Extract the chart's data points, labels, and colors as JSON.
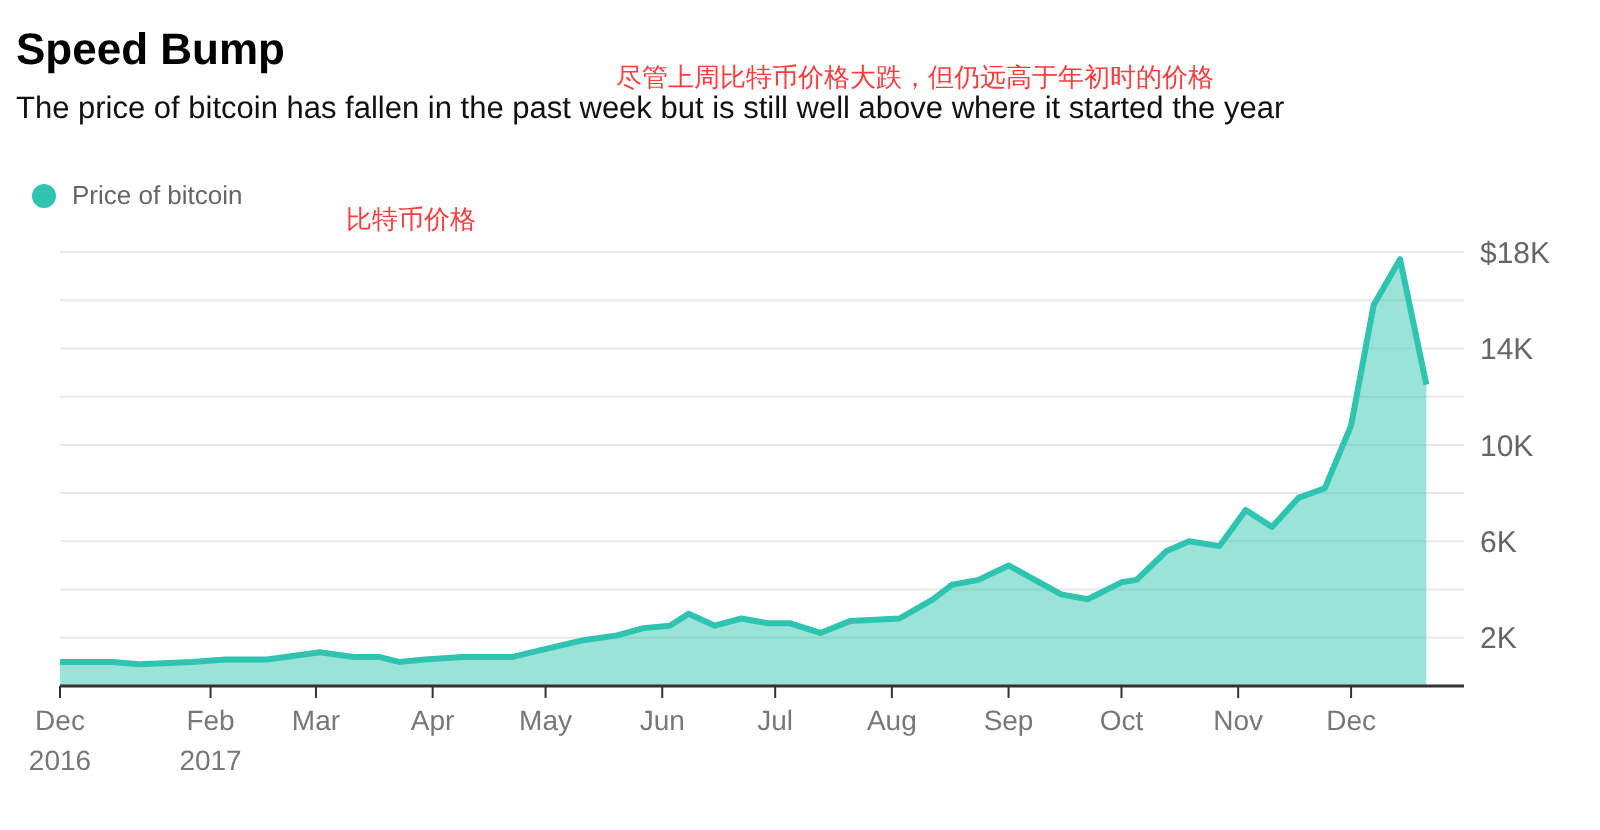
{
  "chart_data": {
    "type": "area",
    "title": "Speed Bump",
    "subtitle": "The price of bitcoin has fallen in the past week but is still well above where it started the year",
    "annotations": [
      "尽管上周比特币价格大跌，但仍远高于年初时的价格",
      "比特币价格"
    ],
    "x": [
      "2016-12-23",
      "2017-01-06",
      "2017-01-13",
      "2017-01-27",
      "2017-02-05",
      "2017-02-16",
      "2017-03-02",
      "2017-03-11",
      "2017-03-18",
      "2017-03-23",
      "2017-03-30",
      "2017-04-09",
      "2017-04-22",
      "2017-04-30",
      "2017-05-11",
      "2017-05-20",
      "2017-05-27",
      "2017-06-03",
      "2017-06-08",
      "2017-06-15",
      "2017-06-22",
      "2017-06-29",
      "2017-07-05",
      "2017-07-13",
      "2017-07-21",
      "2017-08-03",
      "2017-08-12",
      "2017-08-17",
      "2017-08-24",
      "2017-09-01",
      "2017-09-15",
      "2017-09-22",
      "2017-10-01",
      "2017-10-05",
      "2017-10-13",
      "2017-10-19",
      "2017-10-27",
      "2017-11-03",
      "2017-11-10",
      "2017-11-17",
      "2017-11-24",
      "2017-12-01",
      "2017-12-07",
      "2017-12-14",
      "2017-12-21"
    ],
    "series": [
      {
        "name": "Price of bitcoin",
        "color": "#2ec4b0",
        "values": [
          1000,
          1000,
          900,
          1000,
          1100,
          1100,
          1400,
          1200,
          1200,
          1000,
          1100,
          1200,
          1200,
          1500,
          1900,
          2100,
          2400,
          2500,
          3000,
          2500,
          2800,
          2600,
          2600,
          2200,
          2700,
          2800,
          3600,
          4200,
          4400,
          5000,
          3800,
          3600,
          4300,
          4400,
          5600,
          6000,
          5800,
          7300,
          6600,
          7800,
          8200,
          10800,
          15800,
          17700,
          12500
        ]
      }
    ],
    "ylim": [
      0,
      18000
    ],
    "yticks": [
      {
        "value": 2000,
        "label": "2K"
      },
      {
        "value": 4000,
        "label": null
      },
      {
        "value": 6000,
        "label": "6K"
      },
      {
        "value": 8000,
        "label": null
      },
      {
        "value": 10000,
        "label": "10K"
      },
      {
        "value": 12000,
        "label": null
      },
      {
        "value": 14000,
        "label": "14K"
      },
      {
        "value": 16000,
        "label": null
      },
      {
        "value": 18000,
        "label": "$18K"
      }
    ],
    "xticks": [
      {
        "value": "2016-12-23",
        "label": "Dec\n2016"
      },
      {
        "value": "2017-02-01",
        "label": "Feb\n2017"
      },
      {
        "value": "2017-03-01",
        "label": "Mar"
      },
      {
        "value": "2017-04-01",
        "label": "Apr"
      },
      {
        "value": "2017-05-01",
        "label": "May"
      },
      {
        "value": "2017-06-01",
        "label": "Jun"
      },
      {
        "value": "2017-07-01",
        "label": "Jul"
      },
      {
        "value": "2017-08-01",
        "label": "Aug"
      },
      {
        "value": "2017-09-01",
        "label": "Sep"
      },
      {
        "value": "2017-10-01",
        "label": "Oct"
      },
      {
        "value": "2017-11-01",
        "label": "Nov"
      },
      {
        "value": "2017-12-01",
        "label": "Dec"
      }
    ],
    "xlim": [
      "2016-12-23",
      "2017-12-31"
    ],
    "grid": "y",
    "legend": "top left",
    "marker": "none",
    "line_style": "solid"
  }
}
